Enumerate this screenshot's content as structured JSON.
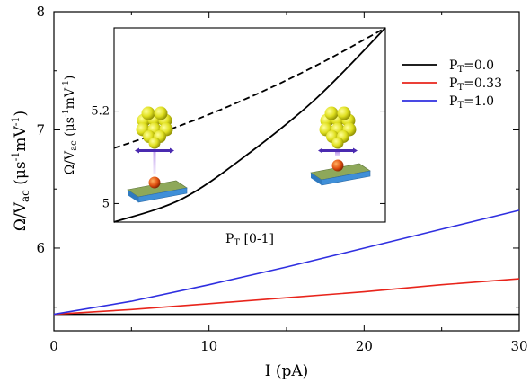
{
  "chart_data": [
    {
      "type": "line",
      "title": "",
      "xlabel": "I (pA)",
      "ylabel_main": "Ω/V",
      "ylabel_sub": "ac",
      "ylabel_unit_pre": " (μs",
      "ylabel_unit_sup1": "-1",
      "ylabel_unit_mid": "mV",
      "ylabel_unit_sup2": "-1",
      "ylabel_unit_post": ")",
      "xlim": [
        0,
        30
      ],
      "ylim": [
        5.3,
        8.0
      ],
      "xticks": [
        0,
        10,
        20,
        30
      ],
      "yticks": [
        6,
        7,
        8
      ],
      "x": [
        0,
        5,
        10,
        15,
        20,
        25,
        30
      ],
      "series": [
        {
          "legend_main": "P",
          "legend_sub": "T",
          "legend_value": "=0.0",
          "color": "#000000",
          "values": [
            5.44,
            5.44,
            5.44,
            5.44,
            5.44,
            5.44,
            5.44
          ]
        },
        {
          "legend_main": "P",
          "legend_sub": "T",
          "legend_value": "=0.33",
          "color": "#e8241b",
          "values": [
            5.44,
            5.48,
            5.53,
            5.58,
            5.63,
            5.69,
            5.74
          ]
        },
        {
          "legend_main": "P",
          "legend_sub": "T",
          "legend_value": "=1.0",
          "color": "#2f2fe0",
          "values": [
            5.44,
            5.55,
            5.69,
            5.84,
            6.0,
            6.16,
            6.32
          ]
        }
      ],
      "legend_position": "right"
    },
    {
      "type": "line",
      "title": "",
      "xlabel_main": "P",
      "xlabel_sub": "T",
      "xlabel_post": " [0-1]",
      "ylabel_main": "Ω/V",
      "ylabel_sub": "ac",
      "ylabel_unit_pre": " (μs",
      "ylabel_unit_sup1": "-1",
      "ylabel_unit_mid": "mV",
      "ylabel_unit_sup2": "-1",
      "ylabel_unit_post": ")",
      "xlim": [
        0,
        1
      ],
      "ylim": [
        4.96,
        5.38
      ],
      "yticks": [
        "5",
        "5.2"
      ],
      "x": [
        0,
        0.25,
        0.5,
        0.75,
        1.0
      ],
      "series": [
        {
          "style": "solid",
          "values": [
            4.96,
            5.01,
            5.11,
            5.23,
            5.38
          ]
        },
        {
          "style": "dashed",
          "values": [
            5.12,
            5.17,
            5.23,
            5.3,
            5.38
          ]
        }
      ]
    }
  ]
}
